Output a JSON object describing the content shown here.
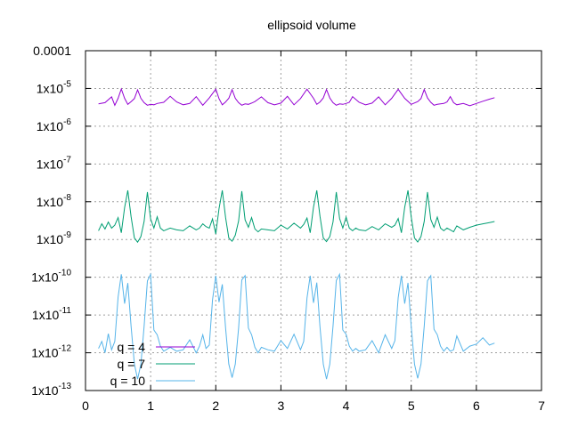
{
  "chart_data": {
    "type": "line",
    "title": "ellipsoid volume",
    "xlabel": "",
    "ylabel": "",
    "xlim": [
      0,
      7
    ],
    "ylim": [
      1e-13,
      0.0001
    ],
    "yscale": "log",
    "grid": true,
    "legend_position": "bottom-left",
    "x_ticks": [
      "0",
      "1",
      "2",
      "3",
      "4",
      "5",
      "6",
      "7"
    ],
    "y_ticks": [
      {
        "base": "1x10",
        "exp": "-13",
        "value": 1e-13
      },
      {
        "base": "1x10",
        "exp": "-12",
        "value": 1e-12
      },
      {
        "base": "1x10",
        "exp": "-11",
        "value": 1e-11
      },
      {
        "base": "1x10",
        "exp": "-10",
        "value": 1e-10
      },
      {
        "base": "1x10",
        "exp": "-9",
        "value": 1e-09
      },
      {
        "base": "1x10",
        "exp": "-8",
        "value": 1e-08
      },
      {
        "base": "1x10",
        "exp": "-7",
        "value": 1e-07
      },
      {
        "base": "1x10",
        "exp": "-6",
        "value": 1e-06
      },
      {
        "base": "1x10",
        "exp": "-5",
        "value": 1e-05
      },
      {
        "base": "0.0001",
        "exp": "",
        "value": 0.0001
      }
    ],
    "series": [
      {
        "name": "q = 4",
        "color": "#9400d3",
        "x": [
          0.2,
          0.3,
          0.4,
          0.45,
          0.5,
          0.55,
          0.6,
          0.65,
          0.7,
          0.75,
          0.8,
          0.85,
          0.9,
          0.95,
          1.0,
          1.05,
          1.1,
          1.2,
          1.3,
          1.4,
          1.5,
          1.6,
          1.7,
          1.8,
          1.9,
          2.0,
          2.05,
          2.1,
          2.15,
          2.2,
          2.25,
          2.3,
          2.35,
          2.4,
          2.45,
          2.5,
          2.55,
          2.6,
          2.7,
          2.8,
          2.9,
          3.0,
          3.1,
          3.2,
          3.3,
          3.4,
          3.5,
          3.55,
          3.6,
          3.65,
          3.7,
          3.75,
          3.8,
          3.85,
          3.9,
          3.95,
          4.0,
          4.05,
          4.1,
          4.2,
          4.3,
          4.4,
          4.5,
          4.6,
          4.7,
          4.8,
          4.9,
          5.0,
          5.1,
          5.15,
          5.2,
          5.25,
          5.3,
          5.35,
          5.4,
          5.45,
          5.5,
          5.55,
          5.6,
          5.65,
          5.7,
          5.8,
          5.9,
          6.0,
          6.1,
          6.2,
          6.28
        ],
        "values": [
          3.9e-06,
          4.2e-06,
          6e-06,
          3.6e-06,
          5.5e-06,
          9.7e-06,
          5.5e-06,
          3.8e-06,
          4.5e-06,
          5.4e-06,
          9.2e-06,
          5.5e-06,
          4.2e-06,
          3.6e-06,
          3.8e-06,
          3.7e-06,
          4e-06,
          4.3e-06,
          6.2e-06,
          4.4e-06,
          3.7e-06,
          4e-06,
          6.1e-06,
          3.6e-06,
          5.6e-06,
          9.6e-06,
          5.4e-06,
          3.7e-06,
          4.4e-06,
          5.5e-06,
          9.3e-06,
          5.5e-06,
          4.2e-06,
          3.6e-06,
          3.9e-06,
          3.8e-06,
          4.1e-06,
          4.5e-06,
          6e-06,
          4.2e-06,
          3.7e-06,
          4.1e-06,
          6.2e-06,
          3.7e-06,
          5.4e-06,
          9.6e-06,
          5.5e-06,
          3.8e-06,
          4.4e-06,
          5.6e-06,
          9.4e-06,
          5.6e-06,
          4.2e-06,
          3.6e-06,
          3.9e-06,
          3.8e-06,
          4e-06,
          4.3e-06,
          6.1e-06,
          4.3e-06,
          3.7e-06,
          4.1e-06,
          6e-06,
          3.7e-06,
          5.5e-06,
          9.5e-06,
          5.5e-06,
          3.8e-06,
          4.5e-06,
          5.4e-06,
          9.4e-06,
          5.6e-06,
          4.3e-06,
          3.6e-06,
          3.8e-06,
          3.9e-06,
          4e-06,
          4.4e-06,
          6.1e-06,
          4.2e-06,
          3.7e-06,
          4e-06,
          3.5e-06,
          4e-06,
          4.6e-06,
          5.2e-06,
          5.7e-06
        ]
      },
      {
        "name": "q = 7",
        "color": "#009e73",
        "x": [
          0.2,
          0.25,
          0.3,
          0.35,
          0.4,
          0.45,
          0.5,
          0.55,
          0.6,
          0.65,
          0.7,
          0.75,
          0.8,
          0.85,
          0.9,
          0.95,
          1.0,
          1.05,
          1.1,
          1.15,
          1.2,
          1.3,
          1.4,
          1.5,
          1.6,
          1.7,
          1.75,
          1.8,
          1.85,
          1.9,
          1.95,
          2.0,
          2.05,
          2.1,
          2.15,
          2.2,
          2.25,
          2.3,
          2.35,
          2.4,
          2.45,
          2.5,
          2.55,
          2.6,
          2.65,
          2.7,
          2.8,
          2.9,
          3.0,
          3.1,
          3.2,
          3.3,
          3.35,
          3.4,
          3.45,
          3.5,
          3.55,
          3.6,
          3.65,
          3.7,
          3.75,
          3.8,
          3.85,
          3.9,
          3.95,
          4.0,
          4.05,
          4.1,
          4.15,
          4.2,
          4.3,
          4.4,
          4.5,
          4.6,
          4.7,
          4.75,
          4.8,
          4.85,
          4.9,
          4.95,
          5.0,
          5.05,
          5.1,
          5.15,
          5.2,
          5.25,
          5.3,
          5.35,
          5.4,
          5.45,
          5.5,
          5.55,
          5.6,
          5.65,
          5.7,
          5.8,
          5.9,
          6.0,
          6.1,
          6.2,
          6.28
        ],
        "values": [
          1.7e-09,
          2.6e-09,
          1.9e-09,
          2.9e-09,
          2e-09,
          2.4e-09,
          3.8e-09,
          1.5e-09,
          7e-09,
          2e-08,
          4e-09,
          1.1e-09,
          8.5e-10,
          1.2e-09,
          3e-09,
          1.8e-08,
          3.5e-09,
          2e-09,
          4e-09,
          2e-09,
          1.7e-09,
          2e-09,
          1.8e-09,
          1.7e-09,
          2.3e-09,
          1.8e-09,
          2e-09,
          2.6e-09,
          2.2e-09,
          2e-09,
          3.5e-09,
          1.4e-09,
          6.5e-09,
          2e-08,
          3.8e-09,
          1.1e-09,
          9e-10,
          1.3e-09,
          3.1e-09,
          1.9e-08,
          3.3e-09,
          2.1e-09,
          3.8e-09,
          1.9e-09,
          1.6e-09,
          1.9e-09,
          1.8e-09,
          1.7e-09,
          2.4e-09,
          1.9e-09,
          2.7e-09,
          2e-09,
          2.5e-09,
          3.7e-09,
          1.5e-09,
          7.2e-09,
          2e-08,
          4.1e-09,
          1.1e-09,
          8.8e-10,
          1.2e-09,
          2.9e-09,
          1.8e-08,
          3.6e-09,
          2e-09,
          3.9e-09,
          2e-09,
          1.7e-09,
          2e-09,
          1.8e-09,
          1.7e-09,
          2.2e-09,
          1.8e-09,
          2.6e-09,
          2.1e-09,
          2.4e-09,
          3.6e-09,
          1.5e-09,
          7.1e-09,
          2e-08,
          4e-09,
          1.1e-09,
          8.6e-10,
          1.2e-09,
          3e-09,
          1.8e-08,
          3.4e-09,
          2.1e-09,
          3.9e-09,
          2e-09,
          1.7e-09,
          2e-09,
          1.8e-09,
          1.6e-09,
          2.3e-09,
          1.8e-09,
          2.1e-09,
          2.4e-09,
          2.6e-09,
          2.8e-09,
          3e-09
        ]
      },
      {
        "name": "q = 10",
        "color": "#56b4e9",
        "x": [
          0.2,
          0.25,
          0.3,
          0.35,
          0.4,
          0.45,
          0.5,
          0.55,
          0.6,
          0.65,
          0.7,
          0.75,
          0.8,
          0.85,
          0.9,
          0.95,
          1.0,
          1.05,
          1.1,
          1.15,
          1.2,
          1.3,
          1.4,
          1.5,
          1.6,
          1.7,
          1.75,
          1.8,
          1.85,
          1.9,
          1.95,
          2.0,
          2.05,
          2.1,
          2.15,
          2.2,
          2.25,
          2.3,
          2.35,
          2.4,
          2.45,
          2.5,
          2.55,
          2.6,
          2.65,
          2.7,
          2.8,
          2.9,
          3.0,
          3.1,
          3.2,
          3.3,
          3.35,
          3.4,
          3.45,
          3.5,
          3.55,
          3.6,
          3.65,
          3.7,
          3.75,
          3.8,
          3.85,
          3.9,
          3.95,
          4.0,
          4.05,
          4.1,
          4.15,
          4.2,
          4.3,
          4.4,
          4.5,
          4.6,
          4.7,
          4.75,
          4.8,
          4.85,
          4.9,
          4.95,
          5.0,
          5.05,
          5.1,
          5.15,
          5.2,
          5.25,
          5.3,
          5.35,
          5.4,
          5.45,
          5.5,
          5.55,
          5.6,
          5.65,
          5.7,
          5.8,
          5.9,
          6.0,
          6.1,
          6.2,
          6.28
        ],
        "values": [
          1.3e-12,
          2e-12,
          1e-12,
          3.2e-12,
          1.2e-12,
          2e-12,
          3e-11,
          1.2e-10,
          2e-11,
          7e-11,
          5e-12,
          5e-13,
          2e-13,
          5e-13,
          5e-12,
          8e-11,
          1.2e-10,
          4e-12,
          3e-12,
          1.5e-12,
          1.1e-12,
          1.4e-12,
          1.1e-12,
          1.2e-12,
          2.2e-12,
          1e-12,
          1.5e-12,
          3e-12,
          1.3e-12,
          1.6e-12,
          2.5e-11,
          1.1e-10,
          2.2e-11,
          6.5e-11,
          4.5e-12,
          5e-13,
          2.2e-13,
          5e-13,
          4.5e-12,
          8.5e-11,
          1.1e-10,
          4.5e-12,
          3e-12,
          1.4e-12,
          1e-12,
          1.4e-12,
          1.2e-12,
          1.1e-12,
          2.1e-12,
          1.3e-12,
          3.1e-12,
          1.2e-12,
          2e-12,
          2.8e-11,
          1.1e-10,
          2.1e-11,
          7.2e-11,
          4.8e-12,
          5e-13,
          2e-13,
          5e-13,
          5e-12,
          8.2e-11,
          1.2e-10,
          4e-12,
          3.1e-12,
          1.5e-12,
          1.1e-12,
          1.3e-12,
          1.1e-12,
          1.2e-12,
          2.1e-12,
          1e-12,
          3e-12,
          1.3e-12,
          2.1e-12,
          2.9e-11,
          1.1e-10,
          2e-11,
          7.1e-11,
          5.1e-12,
          5e-13,
          2.1e-13,
          5e-13,
          5e-12,
          8.1e-11,
          1.1e-10,
          4.2e-12,
          3e-12,
          1.5e-12,
          1.1e-12,
          1.4e-12,
          1.1e-12,
          1.2e-12,
          2.8e-12,
          1.1e-12,
          1.5e-12,
          1.7e-12,
          2.5e-12,
          1.6e-12,
          1.8e-12
        ]
      }
    ]
  }
}
